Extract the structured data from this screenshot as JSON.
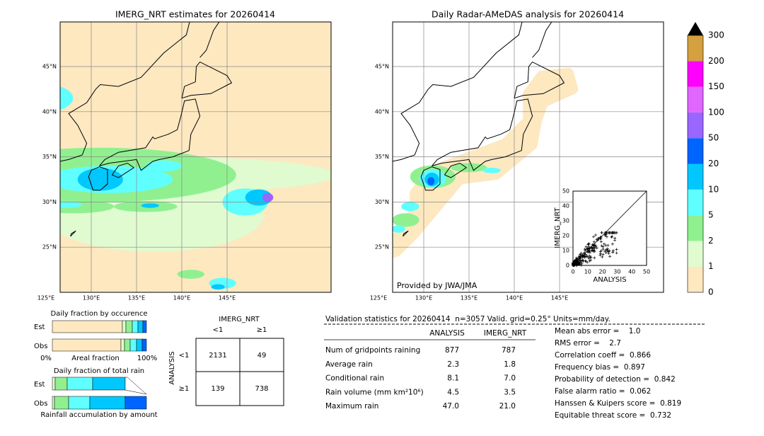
{
  "left_map": {
    "title": "IMERG_NRT estimates for 20260414"
  },
  "right_map": {
    "title": "Daily Radar-AMeDAS analysis for 20260414",
    "credit": "Provided by JWA/JMA"
  },
  "lat_labels": [
    "45°N",
    "40°N",
    "35°N",
    "30°N",
    "25°N"
  ],
  "lon_labels": [
    "125°E",
    "130°E",
    "135°E",
    "140°E",
    "145°E"
  ],
  "scatter": {
    "x_label": "ANALYSIS",
    "y_label": "IMERG_NRT",
    "ticks": [
      "0",
      "10",
      "20",
      "30",
      "40",
      "50"
    ]
  },
  "colorbar": {
    "labels": [
      "0",
      "1",
      "2",
      "5",
      "10",
      "20",
      "50",
      "100",
      "150",
      "200",
      "300"
    ],
    "colors": [
      "#fde8c0",
      "#e0fbd0",
      "#90f090",
      "#60ffff",
      "#00c8ff",
      "#0064ff",
      "#9966ff",
      "#e066ff",
      "#ff00ff",
      "#d4a040"
    ]
  },
  "occurrence": {
    "title": "Daily fraction by occurence",
    "est": "Est",
    "obs": "Obs",
    "left": "0%",
    "middle": "Areal fraction",
    "right": "100%"
  },
  "total_rain": {
    "title": "Daily fraction of total rain",
    "est": "Est",
    "obs": "Obs",
    "footer": "Rainfall accumulation by amount"
  },
  "contingency": {
    "col_title": "IMERG_NRT",
    "cols": [
      "<1",
      "≥1"
    ],
    "row_title": "ANALYSIS",
    "rows": [
      "<1",
      "≥1"
    ],
    "cells": [
      [
        "2131",
        "49"
      ],
      [
        "139",
        "738"
      ]
    ]
  },
  "validation": {
    "heading": "Validation statistics for 20260414  n=3057 Valid. grid=0.25° Units=mm/day.",
    "columns": [
      "ANALYSIS",
      "IMERG_NRT"
    ],
    "rows": [
      [
        "Num of gridpoints raining",
        "877",
        "787"
      ],
      [
        "Average rain",
        "2.3",
        "1.8"
      ],
      [
        "Conditional rain",
        "8.1",
        "7.0"
      ],
      [
        "Rain volume (mm km²10⁶)",
        "4.5",
        "3.5"
      ],
      [
        "Maximum rain",
        "47.0",
        "21.0"
      ]
    ],
    "scores": [
      "Mean abs error =    1.0",
      "RMS error =    2.7",
      "Correlation coeff =  0.866",
      "Frequency bias =  0.897",
      "Probability of detection =  0.842",
      "False alarm ratio =  0.062",
      "Hanssen & Kuipers score =  0.819",
      "Equitable threat score =  0.732"
    ]
  }
}
